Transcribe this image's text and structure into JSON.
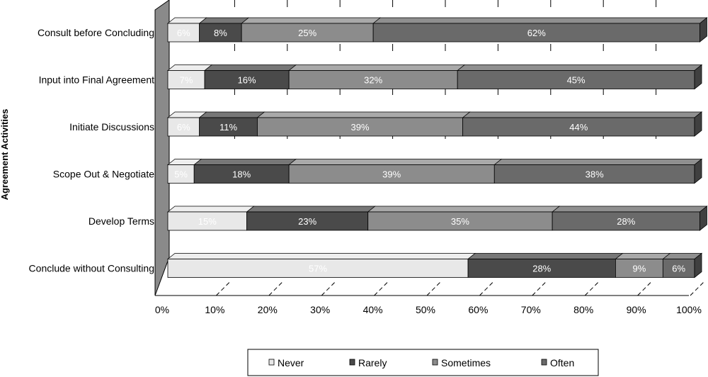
{
  "chart_data": {
    "type": "bar",
    "orientation": "horizontal",
    "stacked": "percent",
    "three_d": true,
    "ylabel": "Agreement Activities",
    "xlim": [
      0,
      100
    ],
    "x_ticks": [
      "0%",
      "10%",
      "20%",
      "30%",
      "40%",
      "50%",
      "60%",
      "70%",
      "80%",
      "90%",
      "100%"
    ],
    "grid": "vertical dashed",
    "legend_position": "bottom",
    "categories": [
      "Consult before Concluding",
      "Input into Final Agreement",
      "Initiate Discussions",
      "Scope Out & Negotiate",
      "Develop Terms",
      "Conclude without Consulting"
    ],
    "series": [
      {
        "name": "Never",
        "color": "#e8e8e8",
        "values": [
          6,
          7,
          6,
          5,
          15,
          57
        ]
      },
      {
        "name": "Rarely",
        "color": "#4a4a4a",
        "values": [
          8,
          16,
          11,
          18,
          23,
          28
        ]
      },
      {
        "name": "Sometimes",
        "color": "#8c8c8c",
        "values": [
          25,
          32,
          39,
          39,
          35,
          9
        ]
      },
      {
        "name": "Often",
        "color": "#6a6a6a",
        "values": [
          62,
          45,
          44,
          38,
          28,
          6
        ]
      }
    ]
  }
}
